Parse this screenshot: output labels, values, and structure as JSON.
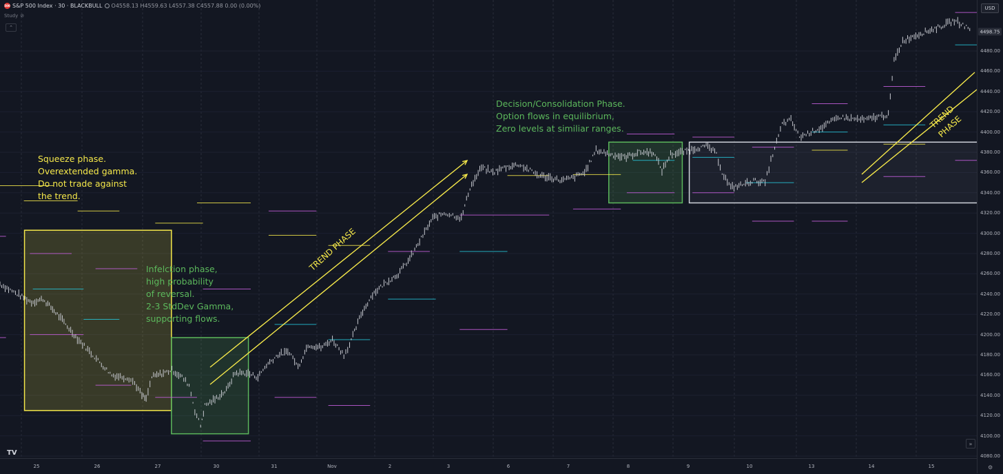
{
  "header": {
    "symbol_logo": "500",
    "title": "S&P 500 Index · 30 · BLACKBULL",
    "ohlc": "O4558.13 H4559.63 L4557.38 C4557.88 0.00 (0.00%)",
    "study_label": "Study",
    "collapse_glyph": "⌃"
  },
  "toolbar": {
    "currency": "USD",
    "tv_logo": "TV",
    "scroll_glyph": "»",
    "settings_glyph": "⚙"
  },
  "chart_data": {
    "type": "candlestick",
    "title": "S&P 500 Index · 30 · BLACKBULL",
    "ylim": [
      4075,
      4520
    ],
    "y_ticks": [
      4080,
      4100,
      4120,
      4140,
      4160,
      4180,
      4200,
      4220,
      4240,
      4260,
      4280,
      4300,
      4320,
      4340,
      4360,
      4380,
      4400,
      4420,
      4440,
      4460,
      4480
    ],
    "last_price": "4498.75",
    "x_ticks": [
      "25",
      "26",
      "27",
      "30",
      "31",
      "Nov",
      "2",
      "3",
      "6",
      "7",
      "8",
      "9",
      "10",
      "13",
      "14",
      "15"
    ],
    "price_path": [
      [
        0.0,
        4250
      ],
      [
        0.6,
        4240
      ],
      [
        1.1,
        4232
      ],
      [
        1.5,
        4235
      ],
      [
        2.0,
        4220
      ],
      [
        2.7,
        4196
      ],
      [
        3.3,
        4178
      ],
      [
        3.9,
        4160
      ],
      [
        4.5,
        4157
      ],
      [
        4.7,
        4152
      ],
      [
        4.95,
        4140
      ],
      [
        5.1,
        4136
      ],
      [
        5.3,
        4158
      ],
      [
        5.7,
        4162
      ],
      [
        6.0,
        4165
      ],
      [
        6.35,
        4158
      ],
      [
        6.6,
        4150
      ],
      [
        6.8,
        4125
      ],
      [
        7.0,
        4110
      ],
      [
        7.15,
        4130
      ],
      [
        7.5,
        4136
      ],
      [
        7.9,
        4145
      ],
      [
        8.2,
        4162
      ],
      [
        8.6,
        4162
      ],
      [
        9.0,
        4158
      ],
      [
        9.3,
        4170
      ],
      [
        9.7,
        4180
      ],
      [
        10.1,
        4183
      ],
      [
        10.4,
        4168
      ],
      [
        10.75,
        4190
      ],
      [
        11.2,
        4187
      ],
      [
        11.6,
        4195
      ],
      [
        12.0,
        4180
      ],
      [
        12.2,
        4190
      ],
      [
        12.6,
        4220
      ],
      [
        13.0,
        4240
      ],
      [
        13.4,
        4250
      ],
      [
        13.9,
        4260
      ],
      [
        14.3,
        4275
      ],
      [
        14.7,
        4295
      ],
      [
        15.1,
        4315
      ],
      [
        15.5,
        4320
      ],
      [
        15.8,
        4318
      ],
      [
        16.1,
        4315
      ],
      [
        16.4,
        4345
      ],
      [
        16.8,
        4365
      ],
      [
        17.2,
        4360
      ],
      [
        17.6,
        4365
      ],
      [
        18.1,
        4368
      ],
      [
        18.5,
        4362
      ],
      [
        18.8,
        4357
      ],
      [
        19.2,
        4355
      ],
      [
        19.6,
        4352
      ],
      [
        20.0,
        4355
      ],
      [
        20.4,
        4360
      ],
      [
        20.8,
        4382
      ],
      [
        21.3,
        4378
      ],
      [
        21.8,
        4375
      ],
      [
        22.3,
        4380
      ],
      [
        22.8,
        4380
      ],
      [
        23.1,
        4362
      ],
      [
        23.4,
        4378
      ],
      [
        23.8,
        4380
      ],
      [
        24.3,
        4384
      ],
      [
        24.7,
        4386
      ],
      [
        25.0,
        4378
      ],
      [
        25.2,
        4360
      ],
      [
        25.5,
        4345
      ],
      [
        25.9,
        4348
      ],
      [
        26.3,
        4352
      ],
      [
        26.7,
        4350
      ],
      [
        26.9,
        4372
      ],
      [
        27.1,
        4390
      ],
      [
        27.3,
        4408
      ],
      [
        27.6,
        4412
      ],
      [
        27.9,
        4395
      ],
      [
        28.3,
        4400
      ],
      [
        28.7,
        4405
      ],
      [
        29.0,
        4410
      ],
      [
        29.3,
        4415
      ],
      [
        29.7,
        4413
      ],
      [
        30.2,
        4412
      ],
      [
        30.6,
        4415
      ],
      [
        31.0,
        4417
      ],
      [
        31.2,
        4470
      ],
      [
        31.5,
        4490
      ],
      [
        31.9,
        4495
      ],
      [
        32.4,
        4500
      ],
      [
        32.9,
        4505
      ],
      [
        33.3,
        4510
      ],
      [
        33.6,
        4506
      ],
      [
        33.9,
        4500
      ]
    ],
    "levels": [
      [
        0.0,
        0.9,
        4347,
        "#f5e84a"
      ],
      [
        -0.1,
        0.1,
        4297,
        "#c75fe0"
      ],
      [
        -0.1,
        0.1,
        4197,
        "#c75fe0"
      ],
      [
        0.4,
        1.3,
        4332,
        "#f5e84a"
      ],
      [
        0.5,
        1.2,
        4280,
        "#c75fe0"
      ],
      [
        0.55,
        1.4,
        4245,
        "#26c6da"
      ],
      [
        0.5,
        1.4,
        4200,
        "#c75fe0"
      ],
      [
        1.3,
        2.0,
        4322,
        "#f5e84a"
      ],
      [
        1.6,
        2.3,
        4265,
        "#c75fe0"
      ],
      [
        1.4,
        2.0,
        4215,
        "#26c6da"
      ],
      [
        1.6,
        2.2,
        4150,
        "#c75fe0"
      ],
      [
        2.6,
        3.4,
        4310,
        "#f5e84a"
      ],
      [
        2.6,
        3.3,
        4138,
        "#c75fe0"
      ],
      [
        3.3,
        4.2,
        4330,
        "#f5e84a"
      ],
      [
        3.4,
        4.2,
        4245,
        "#c75fe0"
      ],
      [
        3.4,
        4.2,
        4095,
        "#c75fe0"
      ],
      [
        4.5,
        5.3,
        4322,
        "#c75fe0"
      ],
      [
        4.5,
        5.3,
        4298,
        "#f5e84a"
      ],
      [
        4.6,
        5.3,
        4210,
        "#26c6da"
      ],
      [
        4.6,
        5.3,
        4138,
        "#c75fe0"
      ],
      [
        5.5,
        6.2,
        4288,
        "#f5e84a"
      ],
      [
        5.5,
        6.2,
        4195,
        "#26c6da"
      ],
      [
        5.5,
        6.2,
        4130,
        "#c75fe0"
      ],
      [
        6.5,
        7.2,
        4282,
        "#c75fe0"
      ],
      [
        6.5,
        7.3,
        4235,
        "#26c6da"
      ],
      [
        7.7,
        8.5,
        4318,
        "#c75fe0"
      ],
      [
        7.7,
        8.5,
        4282,
        "#26c6da"
      ],
      [
        7.7,
        8.5,
        4205,
        "#c75fe0"
      ],
      [
        8.5,
        9.2,
        4357,
        "#f5e84a"
      ],
      [
        8.5,
        9.2,
        4318,
        "#c75fe0"
      ],
      [
        9.6,
        10.4,
        4358,
        "#f5e84a"
      ],
      [
        9.6,
        10.4,
        4324,
        "#c75fe0"
      ],
      [
        10.5,
        11.3,
        4398,
        "#c75fe0"
      ],
      [
        10.6,
        11.3,
        4372,
        "#26c6da"
      ],
      [
        10.5,
        11.3,
        4340,
        "#c75fe0"
      ],
      [
        11.6,
        12.3,
        4395,
        "#c75fe0"
      ],
      [
        11.6,
        12.3,
        4375,
        "#26c6da"
      ],
      [
        11.6,
        12.3,
        4340,
        "#c75fe0"
      ],
      [
        12.6,
        13.3,
        4385,
        "#c75fe0"
      ],
      [
        12.5,
        13.3,
        4350,
        "#26c6da"
      ],
      [
        12.6,
        13.3,
        4312,
        "#c75fe0"
      ],
      [
        13.6,
        14.2,
        4428,
        "#c75fe0"
      ],
      [
        13.6,
        14.2,
        4400,
        "#26c6da"
      ],
      [
        13.6,
        14.2,
        4382,
        "#f5e84a"
      ],
      [
        13.6,
        14.2,
        4312,
        "#c75fe0"
      ],
      [
        14.8,
        15.5,
        4445,
        "#c75fe0"
      ],
      [
        14.8,
        15.5,
        4407,
        "#26c6da"
      ],
      [
        14.8,
        15.5,
        4388,
        "#f5e84a"
      ],
      [
        14.8,
        15.5,
        4356,
        "#c75fe0"
      ],
      [
        16.0,
        16.6,
        4518,
        "#c75fe0"
      ],
      [
        16.0,
        16.6,
        4486,
        "#26c6da"
      ],
      [
        16.0,
        16.6,
        4372,
        "#c75fe0"
      ]
    ],
    "annotations": [
      {
        "text": "Squeeze phase.\nOverextended gamma.\nDo not trade against\nthe trend.",
        "color": "#f5e84a"
      },
      {
        "text": "Infelction phase,\nhigh probability\nof reversal.\n2-3 StdDev Gamma,\nsupporting flows.",
        "color": "#5cb85c"
      },
      {
        "text": "Decision/Consolidation Phase.\nOption flows in equilibrium,\nZero levels at similiar ranges.",
        "color": "#5cb85c"
      },
      {
        "text": "TREND PHASE",
        "color": "#f5e84a"
      },
      {
        "text": "TREND PHASE",
        "color": "#f5e84a"
      }
    ],
    "zones": [
      {
        "name": "squeeze-zone",
        "x0": 0.35,
        "x1": 2.45,
        "y0": 4125,
        "y1": 4303,
        "color": "#f5e84a",
        "fill": "rgba(245,232,74,0.17)"
      },
      {
        "name": "inflection-zone",
        "x0": 2.45,
        "x1": 3.55,
        "y0": 4102,
        "y1": 4197,
        "color": "#5cb85c",
        "fill": "rgba(92,184,92,0.18)"
      },
      {
        "name": "decision-zone",
        "x0": 8.7,
        "x1": 9.75,
        "y0": 4330,
        "y1": 4390,
        "color": "#5cb85c",
        "fill": "rgba(92,184,92,0.18)"
      },
      {
        "name": "consolidation-zone",
        "x0": 9.85,
        "x1": 15.1,
        "y0": 4330,
        "y1": 4390,
        "color": "#d1d4dc",
        "fill": "rgba(209,212,220,0.06)"
      }
    ],
    "grid": true
  }
}
